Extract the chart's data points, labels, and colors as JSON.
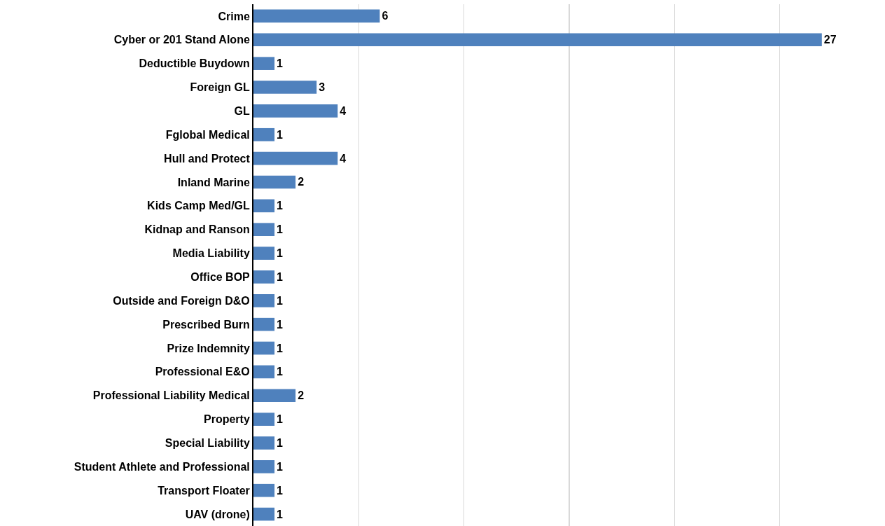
{
  "chart_data": {
    "type": "bar",
    "orientation": "horizontal",
    "categories": [
      "Crime",
      "Cyber or 201 Stand Alone",
      "Deductible Buydown",
      "Foreign GL",
      "GL",
      "Fglobal Medical",
      "Hull and Protect",
      "Inland Marine",
      "Kids Camp Med/GL",
      "Kidnap and Ranson",
      "Media Liability",
      "Office BOP",
      "Outside and Foreign D&O",
      "Prescribed Burn",
      "Prize Indemnity",
      "Professional E&O",
      "Professional Liability Medical",
      "Property",
      "Special Liability",
      "Student Athlete and Professional",
      "Transport Floater",
      "UAV (drone)"
    ],
    "values": [
      6,
      27,
      1,
      3,
      4,
      1,
      4,
      2,
      1,
      1,
      1,
      1,
      1,
      1,
      1,
      1,
      2,
      1,
      1,
      1,
      1,
      1
    ],
    "color": "#4f81bd",
    "xlim": [
      0,
      30
    ],
    "xticks": [
      {
        "value": 0,
        "label": null
      },
      {
        "value": 5,
        "label": null
      },
      {
        "value": 10,
        "label": null
      },
      {
        "value": 15,
        "label": null
      },
      {
        "value": 20,
        "label": null
      },
      {
        "value": 25,
        "label": null
      },
      {
        "value": 30,
        "label": null
      }
    ],
    "grid": "x",
    "data_labels": true,
    "tick_labels": "y"
  }
}
